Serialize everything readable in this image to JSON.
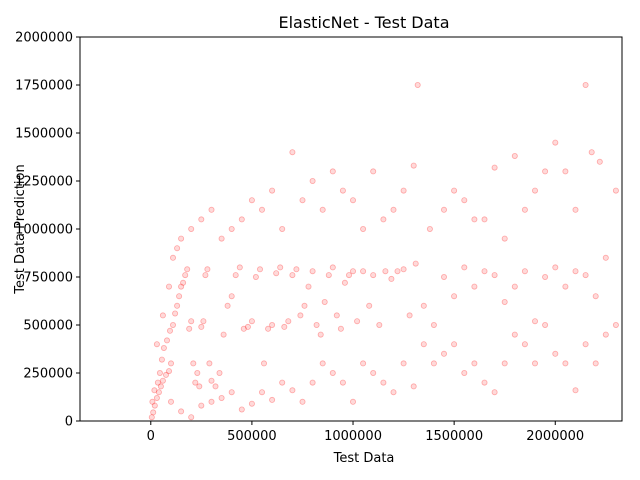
{
  "chart_data": {
    "type": "scatter",
    "title": "ElasticNet - Test Data",
    "xlabel": "Test Data",
    "ylabel": "Test Data Prediction",
    "xlim": [
      -350000,
      2330000
    ],
    "ylim": [
      0,
      2000000
    ],
    "x_ticks": [
      0,
      500000,
      1000000,
      1500000,
      2000000
    ],
    "x_tick_labels": [
      "0",
      "500000",
      "1000000",
      "1500000",
      "2000000"
    ],
    "y_ticks": [
      0,
      250000,
      500000,
      750000,
      1000000,
      1250000,
      1500000,
      1750000,
      2000000
    ],
    "y_tick_labels": [
      "0",
      "250000",
      "500000",
      "750000",
      "1000000",
      "1250000",
      "1500000",
      "1750000",
      "2000000"
    ],
    "grid": false,
    "legend": "none",
    "marker_color": "#ff0000",
    "marker_alpha": 0.15,
    "series": [
      {
        "points": [
          [
            5000,
            20000
          ],
          [
            12000,
            45000
          ],
          [
            20000,
            80000
          ],
          [
            30000,
            120000
          ],
          [
            40000,
            150000
          ],
          [
            50000,
            180000
          ],
          [
            60000,
            210000
          ],
          [
            75000,
            240000
          ],
          [
            90000,
            260000
          ],
          [
            100000,
            300000
          ],
          [
            8000,
            100000
          ],
          [
            18000,
            160000
          ],
          [
            35000,
            200000
          ],
          [
            45000,
            250000
          ],
          [
            55000,
            320000
          ],
          [
            65000,
            380000
          ],
          [
            80000,
            420000
          ],
          [
            95000,
            470000
          ],
          [
            110000,
            500000
          ],
          [
            120000,
            560000
          ],
          [
            130000,
            600000
          ],
          [
            140000,
            650000
          ],
          [
            150000,
            700000
          ],
          [
            160000,
            720000
          ],
          [
            170000,
            760000
          ],
          [
            180000,
            790000
          ],
          [
            190000,
            480000
          ],
          [
            200000,
            520000
          ],
          [
            210000,
            300000
          ],
          [
            220000,
            200000
          ],
          [
            230000,
            250000
          ],
          [
            240000,
            180000
          ],
          [
            250000,
            490000
          ],
          [
            260000,
            520000
          ],
          [
            270000,
            760000
          ],
          [
            280000,
            790000
          ],
          [
            290000,
            300000
          ],
          [
            300000,
            210000
          ],
          [
            320000,
            180000
          ],
          [
            340000,
            250000
          ],
          [
            360000,
            450000
          ],
          [
            380000,
            600000
          ],
          [
            400000,
            650000
          ],
          [
            420000,
            760000
          ],
          [
            440000,
            800000
          ],
          [
            460000,
            480000
          ],
          [
            480000,
            490000
          ],
          [
            500000,
            520000
          ],
          [
            520000,
            750000
          ],
          [
            540000,
            790000
          ],
          [
            560000,
            300000
          ],
          [
            580000,
            480000
          ],
          [
            600000,
            500000
          ],
          [
            620000,
            770000
          ],
          [
            640000,
            800000
          ],
          [
            660000,
            490000
          ],
          [
            680000,
            520000
          ],
          [
            700000,
            760000
          ],
          [
            720000,
            790000
          ],
          [
            740000,
            550000
          ],
          [
            760000,
            600000
          ],
          [
            780000,
            700000
          ],
          [
            800000,
            780000
          ],
          [
            820000,
            500000
          ],
          [
            840000,
            450000
          ],
          [
            860000,
            620000
          ],
          [
            880000,
            760000
          ],
          [
            900000,
            800000
          ],
          [
            920000,
            550000
          ],
          [
            940000,
            480000
          ],
          [
            960000,
            720000
          ],
          [
            980000,
            760000
          ],
          [
            1000000,
            780000
          ],
          [
            1020000,
            520000
          ],
          [
            1050000,
            780000
          ],
          [
            1080000,
            600000
          ],
          [
            1100000,
            760000
          ],
          [
            1130000,
            500000
          ],
          [
            1160000,
            780000
          ],
          [
            1190000,
            740000
          ],
          [
            1220000,
            780000
          ],
          [
            1250000,
            790000
          ],
          [
            1280000,
            550000
          ],
          [
            1310000,
            820000
          ],
          [
            1350000,
            600000
          ],
          [
            1400000,
            500000
          ],
          [
            1450000,
            750000
          ],
          [
            1500000,
            650000
          ],
          [
            1550000,
            800000
          ],
          [
            1600000,
            700000
          ],
          [
            1650000,
            780000
          ],
          [
            1700000,
            760000
          ],
          [
            1750000,
            620000
          ],
          [
            1800000,
            700000
          ],
          [
            1850000,
            780000
          ],
          [
            1900000,
            520000
          ],
          [
            1950000,
            750000
          ],
          [
            2000000,
            800000
          ],
          [
            2050000,
            700000
          ],
          [
            2100000,
            780000
          ],
          [
            2150000,
            760000
          ],
          [
            2200000,
            650000
          ],
          [
            2250000,
            850000
          ],
          [
            2300000,
            500000
          ],
          [
            30000,
            400000
          ],
          [
            60000,
            550000
          ],
          [
            90000,
            700000
          ],
          [
            110000,
            850000
          ],
          [
            130000,
            900000
          ],
          [
            150000,
            950000
          ],
          [
            200000,
            1000000
          ],
          [
            250000,
            1050000
          ],
          [
            300000,
            1100000
          ],
          [
            350000,
            950000
          ],
          [
            400000,
            1000000
          ],
          [
            450000,
            1050000
          ],
          [
            500000,
            1150000
          ],
          [
            550000,
            1100000
          ],
          [
            600000,
            1200000
          ],
          [
            650000,
            1000000
          ],
          [
            700000,
            1400000
          ],
          [
            750000,
            1150000
          ],
          [
            800000,
            1250000
          ],
          [
            850000,
            1100000
          ],
          [
            900000,
            1300000
          ],
          [
            950000,
            1200000
          ],
          [
            1000000,
            1150000
          ],
          [
            1050000,
            1000000
          ],
          [
            1100000,
            1300000
          ],
          [
            1150000,
            1050000
          ],
          [
            1200000,
            1100000
          ],
          [
            1250000,
            1200000
          ],
          [
            1300000,
            1330000
          ],
          [
            1320000,
            1750000
          ],
          [
            1380000,
            1000000
          ],
          [
            1450000,
            1100000
          ],
          [
            1500000,
            1200000
          ],
          [
            1550000,
            1150000
          ],
          [
            1600000,
            1050000
          ],
          [
            1650000,
            1050000
          ],
          [
            1700000,
            1320000
          ],
          [
            1750000,
            950000
          ],
          [
            1800000,
            1380000
          ],
          [
            1850000,
            1100000
          ],
          [
            1900000,
            1200000
          ],
          [
            1950000,
            1300000
          ],
          [
            2000000,
            1450000
          ],
          [
            2050000,
            1300000
          ],
          [
            2100000,
            1100000
          ],
          [
            2150000,
            1750000
          ],
          [
            2180000,
            1400000
          ],
          [
            2220000,
            1350000
          ],
          [
            2300000,
            1200000
          ],
          [
            100000,
            100000
          ],
          [
            150000,
            50000
          ],
          [
            200000,
            20000
          ],
          [
            250000,
            80000
          ],
          [
            300000,
            100000
          ],
          [
            350000,
            120000
          ],
          [
            400000,
            150000
          ],
          [
            450000,
            60000
          ],
          [
            500000,
            90000
          ],
          [
            550000,
            150000
          ],
          [
            600000,
            110000
          ],
          [
            650000,
            200000
          ],
          [
            700000,
            160000
          ],
          [
            750000,
            100000
          ],
          [
            800000,
            200000
          ],
          [
            850000,
            300000
          ],
          [
            900000,
            250000
          ],
          [
            950000,
            200000
          ],
          [
            1000000,
            100000
          ],
          [
            1050000,
            300000
          ],
          [
            1100000,
            250000
          ],
          [
            1150000,
            200000
          ],
          [
            1200000,
            150000
          ],
          [
            1250000,
            300000
          ],
          [
            1300000,
            180000
          ],
          [
            1350000,
            400000
          ],
          [
            1400000,
            300000
          ],
          [
            1450000,
            350000
          ],
          [
            1500000,
            400000
          ],
          [
            1550000,
            250000
          ],
          [
            1600000,
            300000
          ],
          [
            1650000,
            200000
          ],
          [
            1700000,
            150000
          ],
          [
            1750000,
            300000
          ],
          [
            1800000,
            450000
          ],
          [
            1850000,
            400000
          ],
          [
            1900000,
            300000
          ],
          [
            1950000,
            500000
          ],
          [
            2000000,
            350000
          ],
          [
            2050000,
            300000
          ],
          [
            2100000,
            160000
          ],
          [
            2150000,
            400000
          ],
          [
            2200000,
            300000
          ],
          [
            2250000,
            450000
          ]
        ]
      }
    ]
  }
}
